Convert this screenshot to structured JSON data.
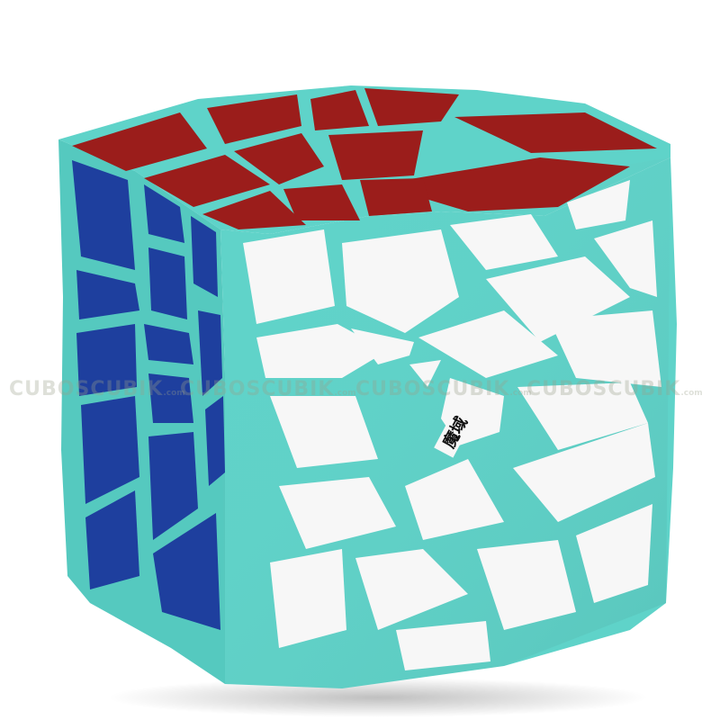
{
  "image": {
    "subject": "axis cube",
    "body_color": "#5fd3c9",
    "face_colors": {
      "top": "#9b1d1b",
      "left": "#1e3f9e",
      "right": "#f7f7f7"
    },
    "background": "#ffffff"
  },
  "watermark": {
    "brand": "CUBOSCUBIK",
    "suffix": ".com",
    "repeats": 4
  },
  "logo": {
    "text": "魔域"
  }
}
